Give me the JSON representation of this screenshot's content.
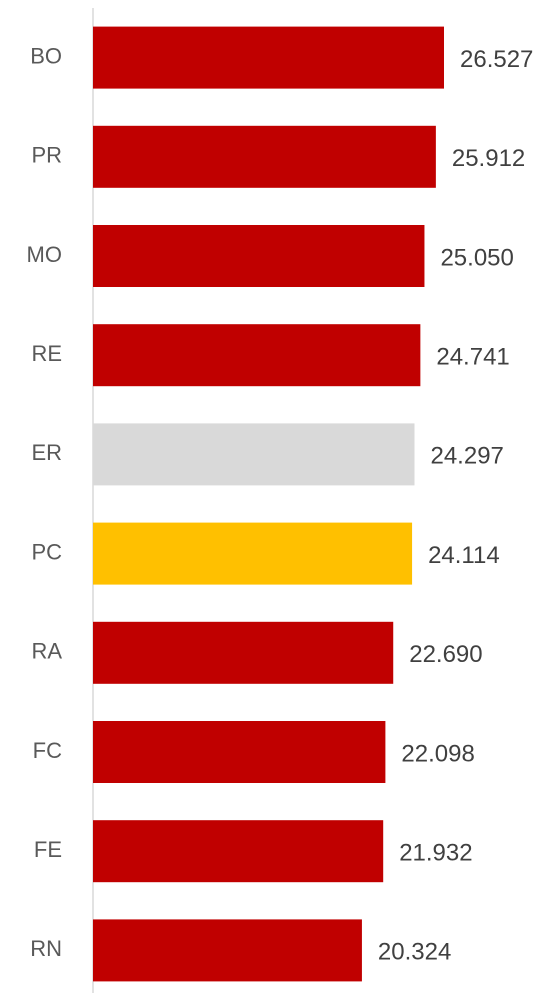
{
  "chart_data": {
    "type": "bar",
    "orientation": "horizontal",
    "categories": [
      "BO",
      "PR",
      "MO",
      "RE",
      "ER",
      "PC",
      "RA",
      "FC",
      "FE",
      "RN"
    ],
    "values": [
      26527,
      25912,
      25050,
      24741,
      24297,
      24114,
      22690,
      22098,
      21932,
      20324
    ],
    "value_labels": [
      "26.527",
      "25.912",
      "25.050",
      "24.741",
      "24.297",
      "24.114",
      "22.690",
      "22.098",
      "21.932",
      "20.324"
    ],
    "colors": [
      "#c00000",
      "#c00000",
      "#c00000",
      "#c00000",
      "#d9d9d9",
      "#ffc000",
      "#c00000",
      "#c00000",
      "#c00000",
      "#c00000"
    ]
  }
}
